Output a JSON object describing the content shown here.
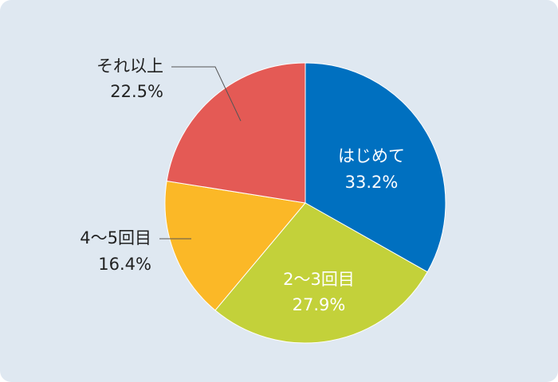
{
  "chart_data": {
    "type": "pie",
    "categories": [
      "はじめて",
      "2〜3回目",
      "4〜5回目",
      "それ以上"
    ],
    "values": [
      33.2,
      27.9,
      16.4,
      22.5
    ],
    "value_labels": [
      "33.2%",
      "27.9%",
      "16.4%",
      "22.5%"
    ],
    "colors": [
      "#0070c0",
      "#c3d13a",
      "#fbb827",
      "#e45a55"
    ]
  }
}
